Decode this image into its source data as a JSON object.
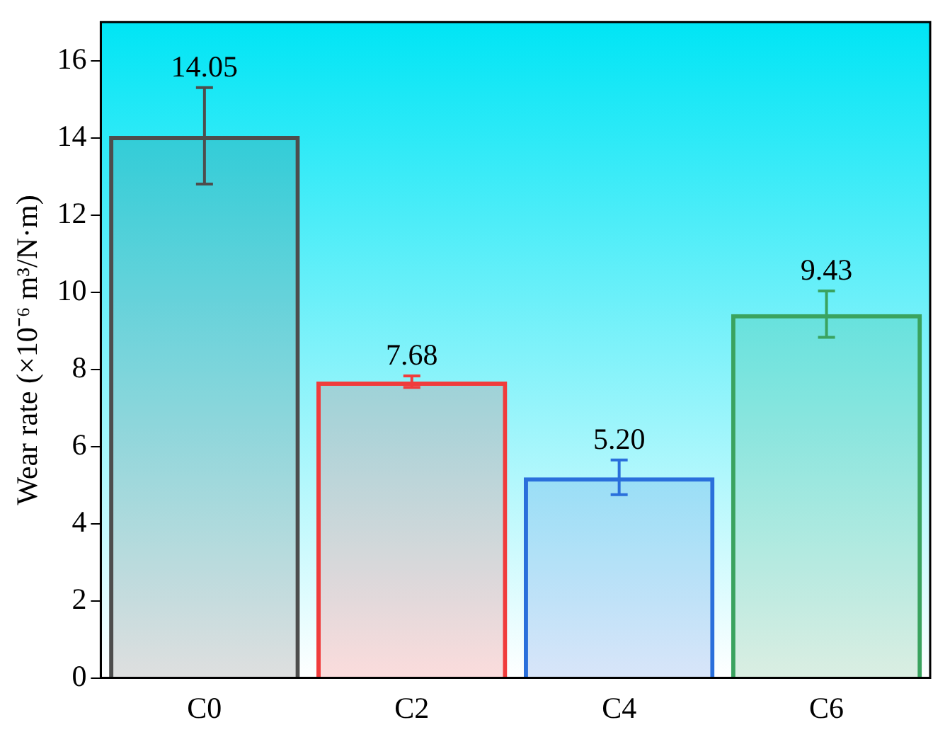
{
  "chart_data": {
    "type": "bar",
    "ylabel": "Wear rate (×10⁻⁶ m³/N·m)",
    "categories": [
      "C0",
      "C2",
      "C4",
      "C6"
    ],
    "values": [
      14.05,
      7.68,
      5.2,
      9.43
    ],
    "colors": [
      "#4d4d4d",
      "#f03c3c",
      "#2a6fdb",
      "#3aa35f"
    ],
    "errors": [
      1.25,
      0.15,
      0.45,
      0.6
    ],
    "value_labels": [
      "14.05",
      "7.68",
      "5.20",
      "9.43"
    ],
    "ylim": [
      0,
      17
    ],
    "yticks": [
      0,
      2,
      4,
      6,
      8,
      10,
      12,
      14,
      16
    ],
    "grid": false,
    "legend": false
  }
}
